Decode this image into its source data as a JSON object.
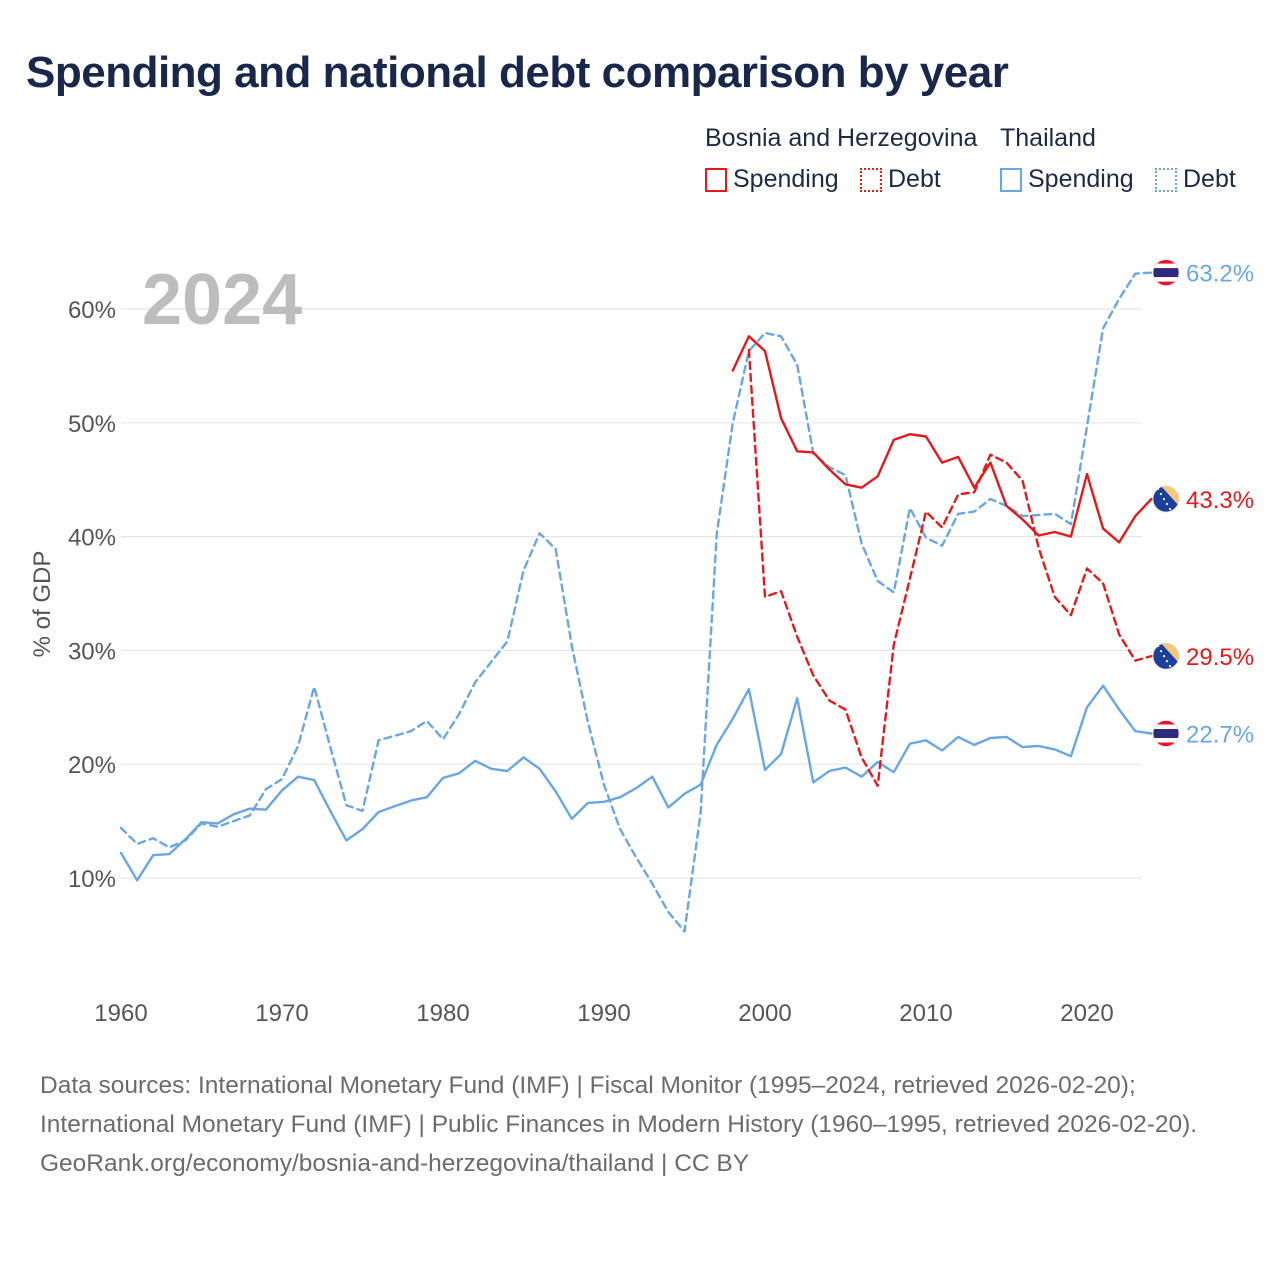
{
  "title": "Spending and national debt comparison by year",
  "legend": {
    "groups": [
      {
        "name": "Bosnia and Herzegovina",
        "color": "#e31a1c",
        "items": [
          {
            "label": "Spending",
            "style": "solid"
          },
          {
            "label": "Debt",
            "style": "dotted"
          }
        ]
      },
      {
        "name": "Thailand",
        "color": "#6aa7e0",
        "items": [
          {
            "label": "Spending",
            "style": "solid"
          },
          {
            "label": "Debt",
            "style": "dotted"
          }
        ]
      }
    ]
  },
  "year_label": "2024",
  "footer": {
    "sources": "Data sources: International Monetary Fund (IMF) | Fiscal Monitor (1995–2024, retrieved 2026-02-20); International Monetary Fund (IMF) | Public Finances in Modern History (1960–1995, retrieved 2026-02-20).",
    "credit": "GeoRank.org/economy/bosnia-and-herzegovina/thailand | CC BY"
  },
  "chart_data": {
    "type": "line",
    "title": "Spending and national debt comparison by year",
    "xlabel": "",
    "ylabel": "% of GDP",
    "xlim": [
      1960,
      2024
    ],
    "ylim": [
      3,
      66
    ],
    "xticks": [
      1960,
      1970,
      1980,
      1990,
      2000,
      2010,
      2020
    ],
    "yticks": [
      10,
      20,
      30,
      40,
      50,
      60
    ],
    "ytick_labels": [
      "10%",
      "20%",
      "30%",
      "40%",
      "50%",
      "60%"
    ],
    "grid": true,
    "series": [
      {
        "name": "Thailand Spending",
        "country": "Thailand",
        "metric": "Spending",
        "color": "#6aa7e0",
        "dash": "solid",
        "end_label": "22.7%",
        "x": [
          1960,
          1961,
          1962,
          1963,
          1964,
          1965,
          1966,
          1967,
          1968,
          1969,
          1970,
          1971,
          1972,
          1973,
          1974,
          1975,
          1976,
          1977,
          1978,
          1979,
          1980,
          1981,
          1982,
          1983,
          1984,
          1985,
          1986,
          1987,
          1988,
          1989,
          1990,
          1991,
          1992,
          1993,
          1994,
          1995,
          1996,
          1997,
          1998,
          1999,
          2000,
          2001,
          2002,
          2003,
          2004,
          2005,
          2006,
          2007,
          2008,
          2009,
          2010,
          2011,
          2012,
          2013,
          2014,
          2015,
          2016,
          2017,
          2018,
          2019,
          2020,
          2021,
          2022,
          2023,
          2024
        ],
        "values": [
          12.2,
          9.8,
          12.0,
          12.1,
          13.4,
          14.9,
          14.8,
          15.6,
          16.1,
          16.0,
          17.7,
          18.9,
          18.6,
          15.9,
          13.3,
          14.3,
          15.8,
          16.3,
          16.8,
          17.1,
          18.8,
          19.2,
          20.3,
          19.6,
          19.4,
          20.6,
          19.6,
          17.6,
          15.2,
          16.6,
          16.7,
          17.1,
          17.9,
          18.9,
          16.2,
          17.4,
          18.2,
          21.7,
          24.0,
          26.6,
          19.5,
          20.9,
          25.8,
          18.4,
          19.4,
          19.7,
          18.9,
          20.2,
          19.3,
          21.8,
          22.1,
          21.2,
          22.4,
          21.7,
          22.3,
          22.4,
          21.5,
          21.6,
          21.3,
          20.7,
          25.0,
          26.9,
          24.8,
          22.9,
          22.7
        ]
      },
      {
        "name": "Thailand Debt",
        "country": "Thailand",
        "metric": "Debt",
        "color": "#6aa7e0",
        "dash": "dashed",
        "end_label": "63.2%",
        "x": [
          1960,
          1961,
          1962,
          1963,
          1964,
          1965,
          1966,
          1967,
          1968,
          1969,
          1970,
          1971,
          1972,
          1973,
          1974,
          1975,
          1976,
          1977,
          1978,
          1979,
          1980,
          1981,
          1982,
          1983,
          1984,
          1985,
          1986,
          1987,
          1988,
          1989,
          1990,
          1991,
          1992,
          1993,
          1994,
          1995,
          1996,
          1997,
          1998,
          1999,
          2000,
          2001,
          2002,
          2003,
          2004,
          2005,
          2006,
          2007,
          2008,
          2009,
          2010,
          2011,
          2012,
          2013,
          2014,
          2015,
          2016,
          2017,
          2018,
          2019,
          2020,
          2021,
          2022,
          2023,
          2024
        ],
        "values": [
          14.4,
          13.0,
          13.5,
          12.7,
          13.3,
          14.8,
          14.5,
          15.0,
          15.5,
          17.8,
          18.7,
          21.6,
          26.8,
          21.5,
          16.4,
          15.9,
          22.1,
          22.5,
          22.9,
          23.8,
          22.2,
          24.4,
          27.2,
          29.0,
          30.8,
          37.0,
          40.3,
          38.9,
          30.4,
          23.7,
          18.2,
          14.3,
          11.8,
          9.5,
          7.0,
          5.3,
          15.7,
          40.2,
          50.0,
          56.3,
          57.9,
          57.6,
          55.1,
          47.3,
          46.1,
          45.4,
          39.4,
          36.1,
          35.1,
          42.5,
          39.9,
          39.2,
          42.0,
          42.2,
          43.3,
          42.7,
          41.8,
          41.9,
          42.0,
          41.1,
          49.7,
          58.3,
          60.9,
          63.1,
          63.2
        ]
      },
      {
        "name": "Bosnia and Herzegovina Spending",
        "country": "Bosnia and Herzegovina",
        "metric": "Spending",
        "color": "#e31a1c",
        "dash": "solid",
        "end_label": "43.3%",
        "x": [
          1998,
          1999,
          2000,
          2001,
          2002,
          2003,
          2004,
          2005,
          2006,
          2007,
          2008,
          2009,
          2010,
          2011,
          2012,
          2013,
          2014,
          2015,
          2016,
          2017,
          2018,
          2019,
          2020,
          2021,
          2022,
          2023,
          2024
        ],
        "values": [
          54.6,
          57.6,
          56.3,
          50.4,
          47.5,
          47.4,
          45.9,
          44.6,
          44.3,
          45.3,
          48.5,
          49.0,
          48.8,
          46.5,
          47.0,
          44.3,
          46.5,
          42.7,
          41.5,
          40.1,
          40.4,
          40.0,
          45.5,
          40.7,
          39.5,
          41.8,
          43.3
        ]
      },
      {
        "name": "Bosnia and Herzegovina Debt",
        "country": "Bosnia and Herzegovina",
        "metric": "Debt",
        "color": "#e31a1c",
        "dash": "dashed",
        "end_label": "29.5%",
        "x": [
          1999,
          2000,
          2001,
          2002,
          2003,
          2004,
          2005,
          2006,
          2007,
          2008,
          2009,
          2010,
          2011,
          2012,
          2013,
          2014,
          2015,
          2016,
          2017,
          2018,
          2019,
          2020,
          2021,
          2022,
          2023,
          2024
        ],
        "values": [
          56.4,
          34.7,
          35.2,
          31.2,
          27.8,
          25.6,
          24.8,
          20.6,
          18.1,
          30.5,
          36.3,
          42.2,
          40.8,
          43.7,
          43.9,
          47.2,
          46.5,
          44.9,
          39.0,
          34.7,
          33.1,
          37.2,
          35.9,
          31.4,
          29.1,
          29.5
        ]
      }
    ],
    "end_markers": [
      {
        "label": "63.2%",
        "flag": "thailand-flag-icon",
        "color": "#6aa7e0"
      },
      {
        "label": "43.3%",
        "flag": "bosnia-flag-icon",
        "color": "#e31a1c"
      },
      {
        "label": "29.5%",
        "flag": "bosnia-flag-icon",
        "color": "#e31a1c"
      },
      {
        "label": "22.7%",
        "flag": "thailand-flag-icon",
        "color": "#6aa7e0"
      }
    ]
  }
}
